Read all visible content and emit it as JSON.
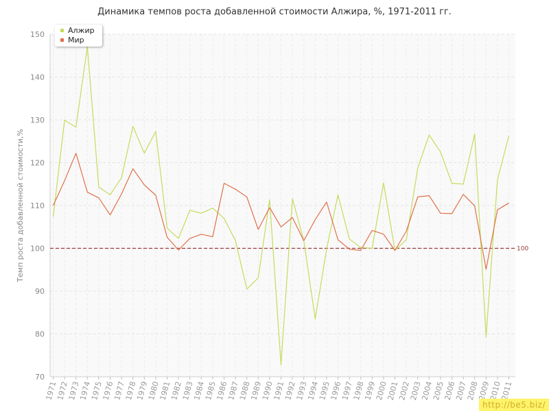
{
  "chart_data": {
    "type": "line",
    "title": "Динамика темпов роста добавленной стоимости Алжира, %, 1971-2011 гг.",
    "xlabel": "",
    "ylabel": "Темп роста добавленной стоимости,%",
    "ylim": [
      70,
      150
    ],
    "yticks": [
      70,
      80,
      90,
      100,
      110,
      120,
      130,
      140,
      150
    ],
    "categories": [
      "1971",
      "1972",
      "1973",
      "1974",
      "1975",
      "1976",
      "1977",
      "1978",
      "1979",
      "1980",
      "1981",
      "1982",
      "1983",
      "1984",
      "1985",
      "1986",
      "1987",
      "1988",
      "1989",
      "1990",
      "1991",
      "1992",
      "1993",
      "1994",
      "1995",
      "1996",
      "1997",
      "1998",
      "1999",
      "2000",
      "2001",
      "2002",
      "2003",
      "2004",
      "2005",
      "2006",
      "2007",
      "2008",
      "2009",
      "2010",
      "2011"
    ],
    "series": [
      {
        "name": "Алжир",
        "color": "#c3dc5a",
        "values": [
          107.4,
          129.9,
          128.3,
          147.1,
          114.3,
          112.5,
          116.5,
          128.5,
          122.2,
          127.3,
          104.7,
          102.3,
          108.9,
          108.2,
          109.4,
          107.0,
          101.8,
          90.5,
          93.1,
          111.3,
          72.8,
          111.6,
          101.8,
          83.5,
          99.8,
          112.5,
          102.2,
          100.2,
          100.0,
          115.3,
          99.5,
          102.0,
          118.7,
          126.5,
          122.5,
          115.2,
          115.0,
          126.7,
          79.3,
          116.0,
          126.3
        ]
      },
      {
        "name": "Мир",
        "color": "#e0704a",
        "values": [
          110.0,
          115.8,
          122.2,
          113.1,
          111.8,
          107.8,
          112.7,
          118.6,
          114.8,
          112.4,
          102.6,
          99.6,
          102.3,
          103.3,
          102.7,
          115.2,
          113.8,
          112.0,
          104.4,
          109.5,
          105.0,
          107.2,
          101.8,
          106.7,
          110.8,
          102.0,
          99.8,
          99.5,
          104.2,
          103.3,
          99.5,
          104.0,
          112.0,
          112.3,
          108.2,
          108.1,
          112.6,
          109.9,
          95.1,
          109.0,
          110.6
        ]
      }
    ],
    "reference_line": {
      "value": 100,
      "label": "100",
      "color": "#9a3a3a"
    },
    "grid": true,
    "legend_position": "top-left"
  },
  "watermark": "http://be5.biz/"
}
